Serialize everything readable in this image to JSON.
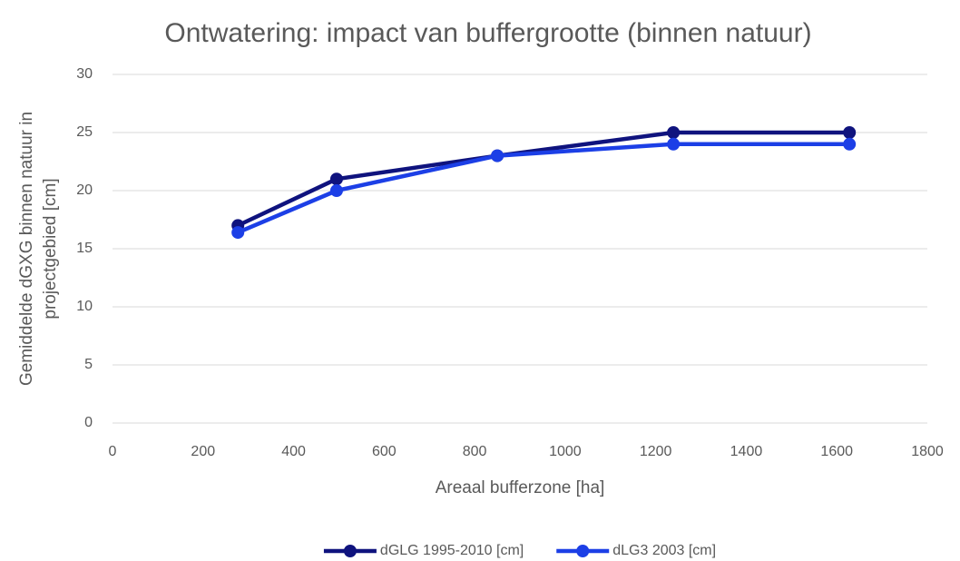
{
  "chart_data": {
    "type": "line",
    "title": "Ontwatering: impact van buffergrootte (binnen natuur)",
    "x_label": "Areaal bufferzone [ha]",
    "y_label": [
      "Gemiddelde dGXG binnen natuur in",
      "projectgebied [cm]"
    ],
    "x": [
      277,
      495,
      850,
      1239,
      1628
    ],
    "series": [
      {
        "name": "dGLG 1995-2010 [cm]",
        "color": "#0f137e",
        "values": [
          17,
          21,
          23,
          25,
          25
        ]
      },
      {
        "name": "dLG3 2003 [cm]",
        "color": "#1c3fe6",
        "values": [
          16.4,
          20,
          23,
          24,
          24
        ]
      }
    ],
    "xlim": [
      0,
      1800
    ],
    "xticks": [
      0,
      200,
      400,
      600,
      800,
      1000,
      1200,
      1400,
      1600,
      1800
    ],
    "ylim": [
      0,
      30
    ],
    "yticks": [
      0,
      5,
      10,
      15,
      20,
      25,
      30
    ],
    "grid": true,
    "legend": "bottom"
  }
}
